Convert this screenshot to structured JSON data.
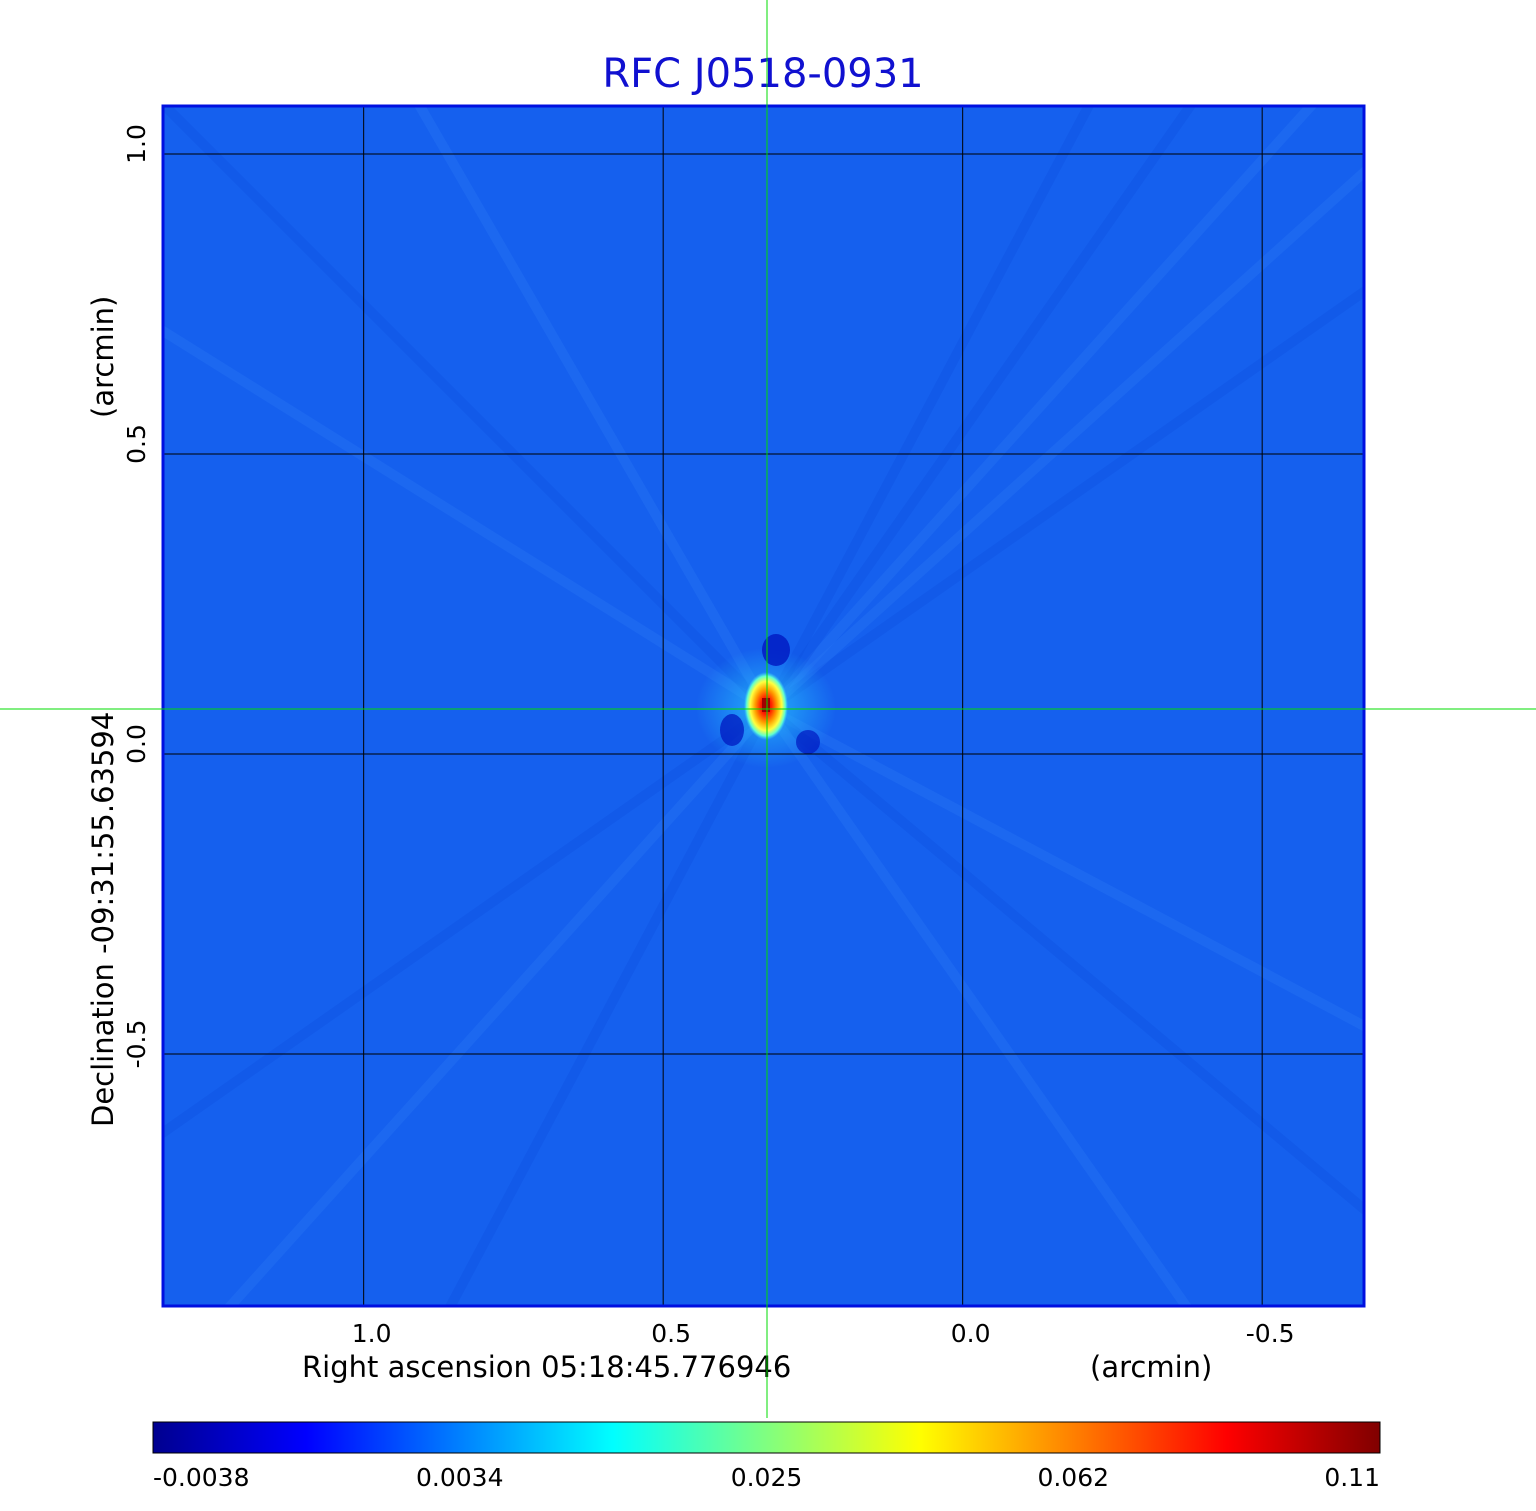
{
  "chart_data": {
    "type": "heatmap",
    "title": "RFC J0518-0931",
    "xlabel": "Right ascension  05:18:45.776946",
    "xunit": "(arcmin)",
    "ylabel": "Declination  -09:31:55.63594",
    "yunit": "(arcmin)",
    "xlim": [
      1.335,
      -0.67
    ],
    "ylim": [
      -0.92,
      1.08
    ],
    "x_ticks": [
      1.0,
      0.5,
      0.0,
      -0.5
    ],
    "x_tick_labels": [
      "1.0",
      "0.5",
      "0.0",
      "-0.5"
    ],
    "y_ticks": [
      1.0,
      0.5,
      0.0,
      -0.5
    ],
    "y_tick_labels": [
      "1.0",
      "0.5",
      "0.0",
      "-0.5"
    ],
    "grid": true,
    "crosshair": {
      "x": 0.325,
      "y": 0.073
    },
    "source_peak": {
      "x": 0.325,
      "y": 0.075,
      "value": 0.11
    },
    "colorbar": {
      "ticks": [
        -0.0038,
        0.0034,
        0.025,
        0.062,
        0.11
      ],
      "tick_labels": [
        "-0.0038",
        "0.0034",
        "0.025",
        "0.062",
        "0.11"
      ],
      "colormap": [
        "#00008f",
        "#0000ff",
        "#0080ff",
        "#00ffff",
        "#80ff80",
        "#ffff00",
        "#ff8000",
        "#ff0000",
        "#800000"
      ]
    },
    "colors": {
      "background_map": "#1560ee",
      "crosshair": "#00dd00",
      "grid": "#000000",
      "title": "#1010d0"
    }
  }
}
